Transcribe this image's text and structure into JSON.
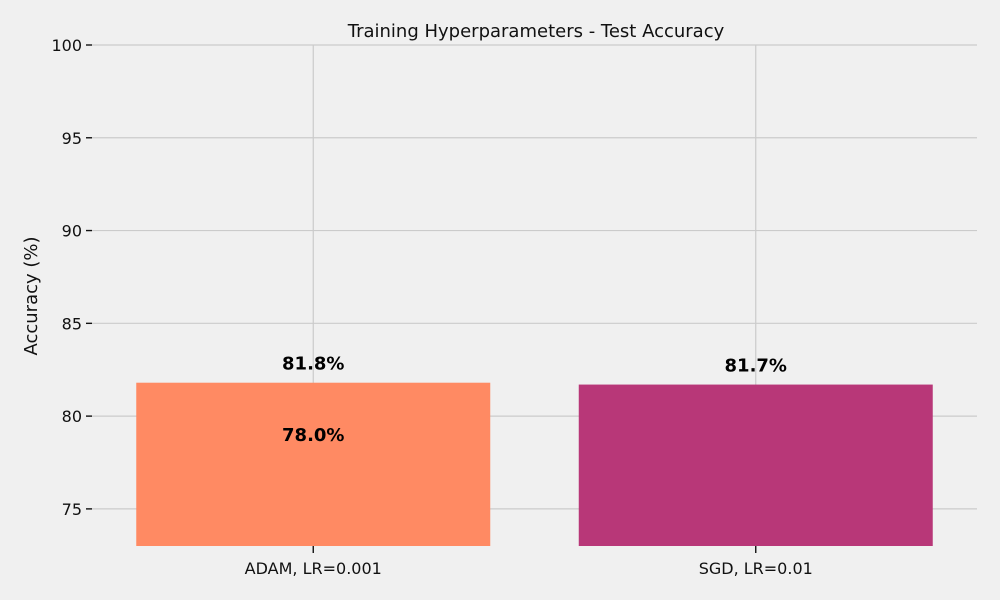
{
  "chart_data": {
    "type": "bar",
    "title": "Training Hyperparameters - Test Accuracy",
    "xlabel": "",
    "ylabel": "Accuracy (%)",
    "ylim": [
      73,
      100
    ],
    "yticks": [
      75,
      80,
      85,
      90,
      95,
      100
    ],
    "grid": true,
    "categories": [
      "ADAM, LR=0.001",
      "SGD, LR=0.01"
    ],
    "values": [
      81.8,
      81.7
    ],
    "bar_colors": [
      "#ff8a63",
      "#b83778"
    ],
    "data_labels": [
      "81.8%",
      "81.7%"
    ],
    "annotations": [
      {
        "category": "ADAM, LR=0.001",
        "value": 78.0,
        "text": "78.0%"
      }
    ]
  }
}
